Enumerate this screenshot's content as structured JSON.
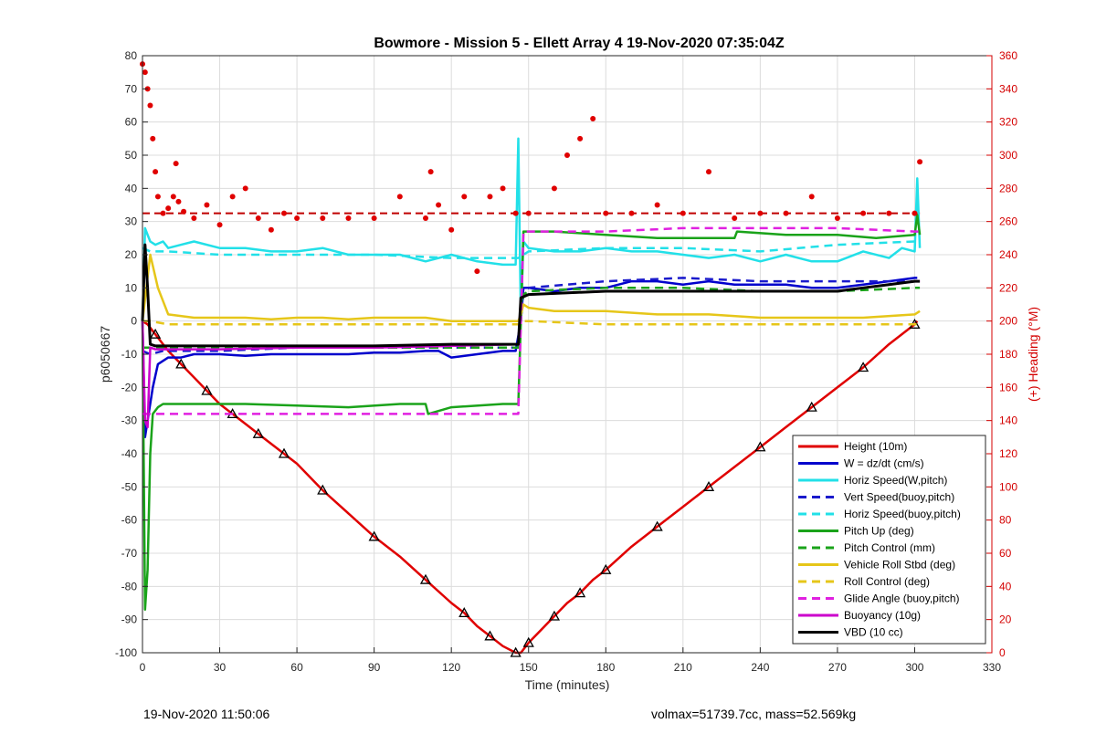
{
  "title": "Bowmore - Mission 5 - Ellett Array 4 19-Nov-2020 07:35:04Z",
  "footer_left": "19-Nov-2020 11:50:06",
  "footer_right": "volmax=51739.7cc, mass=52.569kg",
  "chart_data": {
    "type": "line",
    "xlabel": "Time (minutes)",
    "ylabel": "p6050667",
    "y2label": "(+) Heading (°M)",
    "xlim": [
      0,
      330
    ],
    "ylim": [
      -100,
      80
    ],
    "y2lim": [
      0,
      360
    ],
    "xticks": [
      0,
      30,
      60,
      90,
      120,
      150,
      180,
      210,
      240,
      270,
      300,
      330
    ],
    "yticks": [
      80,
      70,
      60,
      50,
      40,
      30,
      20,
      10,
      0,
      -10,
      -20,
      -30,
      -40,
      -50,
      -60,
      -70,
      -80,
      -90,
      -100
    ],
    "y2ticks": [
      360,
      340,
      320,
      300,
      280,
      260,
      240,
      220,
      200,
      180,
      160,
      140,
      120,
      100,
      80,
      60,
      40,
      20,
      0
    ],
    "xtick_labels": [
      "0",
      "30",
      "60",
      "90",
      "120",
      "150",
      "180",
      "210",
      "240",
      "270",
      "300",
      "330"
    ],
    "ytick_labels": [
      "80",
      "70",
      "60",
      "50",
      "40",
      "30",
      "20",
      "10",
      "0",
      "-10",
      "-20",
      "-30",
      "-40",
      "-50",
      "-60",
      "-70",
      "-80",
      "-90",
      "-100"
    ],
    "y2tick_labels": [
      "360",
      "340",
      "320",
      "300",
      "280",
      "260",
      "240",
      "220",
      "200",
      "180",
      "160",
      "140",
      "120",
      "100",
      "80",
      "60",
      "40",
      "20",
      "0"
    ],
    "grid": true,
    "legend_position": "bottom-right",
    "heading_reference": 265,
    "series": [
      {
        "name": "Height (10m)",
        "color": "#e00000",
        "style": "solid",
        "x": [
          0,
          2,
          5,
          10,
          15,
          20,
          25,
          30,
          35,
          40,
          45,
          50,
          55,
          60,
          70,
          80,
          90,
          100,
          110,
          120,
          125,
          130,
          135,
          140,
          145,
          147,
          150,
          155,
          160,
          165,
          170,
          175,
          180,
          190,
          200,
          210,
          220,
          230,
          240,
          250,
          260,
          270,
          280,
          290,
          300,
          301
        ],
        "y": [
          0,
          -1,
          -4,
          -9,
          -13,
          -17,
          -21,
          -25,
          -28,
          -31,
          -34,
          -37,
          -40,
          -43,
          -51,
          -58,
          -65,
          -71,
          -78,
          -85,
          -88,
          -92,
          -95,
          -98,
          -100,
          -100,
          -97,
          -93,
          -89,
          -85,
          -82,
          -78,
          -75,
          -68,
          -62,
          -56,
          -50,
          -44,
          -38,
          -32,
          -26,
          -20,
          -14,
          -7,
          -1,
          0
        ]
      },
      {
        "name": "W = dz/dt (cm/s)",
        "color": "#0000cc",
        "style": "solid",
        "x": [
          0,
          1,
          2,
          4,
          6,
          10,
          15,
          20,
          30,
          40,
          50,
          60,
          70,
          80,
          90,
          100,
          110,
          115,
          120,
          130,
          140,
          145,
          147,
          148,
          150,
          160,
          170,
          180,
          190,
          200,
          210,
          220,
          230,
          240,
          250,
          260,
          270,
          280,
          290,
          300,
          301
        ],
        "y": [
          0,
          -35,
          -30,
          -20,
          -13,
          -11,
          -11,
          -10,
          -10,
          -10.5,
          -10,
          -10,
          -10,
          -10,
          -9.5,
          -9.5,
          -9,
          -9,
          -11,
          -10,
          -9,
          -9,
          0,
          10,
          10,
          9,
          10,
          10,
          12,
          12,
          11,
          12,
          11,
          11,
          11,
          10,
          10,
          11,
          12,
          13,
          13
        ]
      },
      {
        "name": "Horiz Speed(W,pitch)",
        "color": "#22e0e8",
        "style": "solid",
        "x": [
          0,
          1,
          2,
          3,
          5,
          8,
          10,
          15,
          20,
          30,
          40,
          50,
          60,
          70,
          80,
          90,
          100,
          110,
          120,
          130,
          140,
          145,
          146,
          147,
          148,
          150,
          160,
          170,
          180,
          190,
          200,
          210,
          220,
          230,
          240,
          250,
          260,
          270,
          280,
          290,
          295,
          300,
          301,
          302
        ],
        "y": [
          0,
          28,
          26,
          24,
          23,
          24,
          22,
          23,
          24,
          22,
          22,
          21,
          21,
          22,
          20,
          20,
          20,
          18,
          20,
          18,
          17,
          17,
          55,
          0,
          24,
          22,
          21,
          21,
          22,
          21,
          21,
          20,
          19,
          20,
          18,
          20,
          18,
          18,
          21,
          19,
          22,
          21,
          43,
          22
        ]
      },
      {
        "name": "Vert Speed(buoy,pitch)",
        "color": "#1a1acc",
        "style": "dashed",
        "x": [
          0,
          3,
          8,
          15,
          30,
          60,
          90,
          120,
          146,
          148,
          150,
          180,
          210,
          240,
          270,
          300,
          302
        ],
        "y": [
          -9,
          -10,
          -9,
          -9,
          -9,
          -8,
          -8,
          -8,
          -8,
          9,
          10,
          12,
          13,
          12,
          12,
          12,
          12
        ]
      },
      {
        "name": "Horiz Speed(buoy,pitch)",
        "color": "#22e0e8",
        "style": "dashed",
        "x": [
          0,
          3,
          10,
          30,
          60,
          90,
          120,
          146,
          148,
          150,
          180,
          210,
          240,
          270,
          300,
          302
        ],
        "y": [
          22,
          21,
          21,
          20,
          20,
          20,
          19,
          19,
          20,
          21,
          22,
          22,
          21,
          23,
          24,
          24
        ]
      },
      {
        "name": "Pitch Up (deg)",
        "color": "#1aa31a",
        "style": "solid",
        "x": [
          0,
          1,
          2,
          3,
          4,
          6,
          8,
          10,
          20,
          40,
          60,
          80,
          100,
          110,
          111,
          120,
          140,
          146,
          147,
          148,
          150,
          160,
          180,
          200,
          230,
          231,
          250,
          270,
          285,
          300,
          301,
          302
        ],
        "y": [
          0,
          -87,
          -75,
          -40,
          -28,
          -26,
          -25,
          -25,
          -25,
          -25,
          -25.5,
          -26,
          -25,
          -25,
          -28,
          -26,
          -25,
          -25,
          0,
          27,
          27,
          27,
          26,
          25,
          25,
          27,
          26,
          26,
          25,
          26,
          32,
          26
        ]
      },
      {
        "name": "Pitch Control (mm)",
        "color": "#1aa31a",
        "style": "dashed",
        "x": [
          0,
          3,
          10,
          30,
          60,
          90,
          120,
          146,
          148,
          150,
          180,
          210,
          240,
          270,
          300,
          302
        ],
        "y": [
          -8,
          -8,
          -8,
          -8,
          -8,
          -8,
          -8,
          -8,
          8,
          9,
          10,
          10,
          9,
          9,
          10,
          10
        ]
      },
      {
        "name": "Vehicle Roll Stbd (deg)",
        "color": "#e6c619",
        "style": "solid",
        "x": [
          0,
          3,
          6,
          10,
          20,
          30,
          40,
          50,
          60,
          70,
          80,
          90,
          100,
          110,
          120,
          130,
          140,
          146,
          147,
          148,
          150,
          160,
          170,
          180,
          200,
          220,
          240,
          260,
          280,
          300,
          302
        ],
        "y": [
          0,
          20,
          10,
          2,
          1,
          1,
          1,
          0.5,
          1,
          1,
          0.5,
          1,
          1,
          1,
          0,
          0,
          0,
          0,
          2,
          5,
          4,
          3,
          3,
          3,
          2,
          2,
          1,
          1,
          1,
          2,
          3
        ]
      },
      {
        "name": "Roll Control (deg)",
        "color": "#e6c619",
        "style": "dashed",
        "x": [
          0,
          3,
          10,
          30,
          60,
          90,
          120,
          146,
          148,
          150,
          180,
          210,
          240,
          270,
          300,
          302
        ],
        "y": [
          0,
          0,
          -1,
          -1,
          -1,
          -1,
          -1,
          -1,
          0,
          0,
          -1,
          -1,
          -1,
          -1,
          -1,
          -1
        ]
      },
      {
        "name": "Glide Angle (buoy,pitch)",
        "color": "#e020e0",
        "style": "dashed",
        "x": [
          0,
          3,
          10,
          30,
          60,
          90,
          120,
          146,
          148,
          150,
          180,
          210,
          240,
          270,
          300,
          302
        ],
        "y": [
          -28,
          -28,
          -28,
          -28,
          -28,
          -28,
          -28,
          -28,
          27,
          27,
          27,
          28,
          28,
          28,
          27,
          27
        ]
      },
      {
        "name": "Buoyancy (10g)",
        "color": "#cc00cc",
        "style": "solid",
        "x": [
          0,
          1,
          2,
          3,
          5,
          10,
          30,
          60,
          90,
          120,
          146,
          147,
          150,
          180,
          210,
          240,
          270,
          280,
          290,
          300,
          302
        ],
        "y": [
          0,
          -30,
          -32,
          -8,
          -8.5,
          -8.5,
          -8.5,
          -8,
          -8,
          -7.5,
          -7,
          7,
          8,
          9,
          9,
          9,
          9,
          10,
          11,
          12,
          12
        ]
      },
      {
        "name": "VBD (10 cc)",
        "color": "#000000",
        "style": "solid",
        "x": [
          0,
          1,
          2,
          3,
          5,
          10,
          30,
          60,
          90,
          120,
          146,
          147,
          150,
          180,
          210,
          240,
          270,
          280,
          290,
          300,
          302
        ],
        "y": [
          0,
          23,
          10,
          -7,
          -7.5,
          -7.5,
          -7.5,
          -7.5,
          -7.5,
          -7,
          -7,
          7,
          8,
          9,
          9,
          9,
          9,
          10,
          11,
          12,
          12
        ]
      },
      {
        "name": "Heading",
        "color": "#e00000",
        "style": "markers",
        "axis": "right",
        "x": [
          0,
          1,
          2,
          3,
          4,
          5,
          6,
          8,
          10,
          12,
          13,
          14,
          16,
          20,
          25,
          30,
          35,
          40,
          45,
          50,
          55,
          60,
          70,
          80,
          90,
          100,
          110,
          112,
          115,
          120,
          125,
          130,
          135,
          140,
          145,
          150,
          160,
          165,
          170,
          175,
          180,
          190,
          200,
          210,
          220,
          230,
          240,
          250,
          260,
          270,
          280,
          290,
          300,
          302
        ],
        "y": [
          355,
          350,
          340,
          330,
          310,
          290,
          275,
          265,
          268,
          275,
          295,
          272,
          266,
          262,
          270,
          258,
          275,
          280,
          262,
          255,
          265,
          262,
          262,
          262,
          262,
          275,
          262,
          290,
          270,
          255,
          275,
          230,
          275,
          280,
          265,
          265,
          280,
          300,
          310,
          322,
          265,
          265,
          270,
          265,
          290,
          262,
          265,
          265,
          275,
          262,
          265,
          265,
          265,
          296
        ]
      }
    ]
  }
}
